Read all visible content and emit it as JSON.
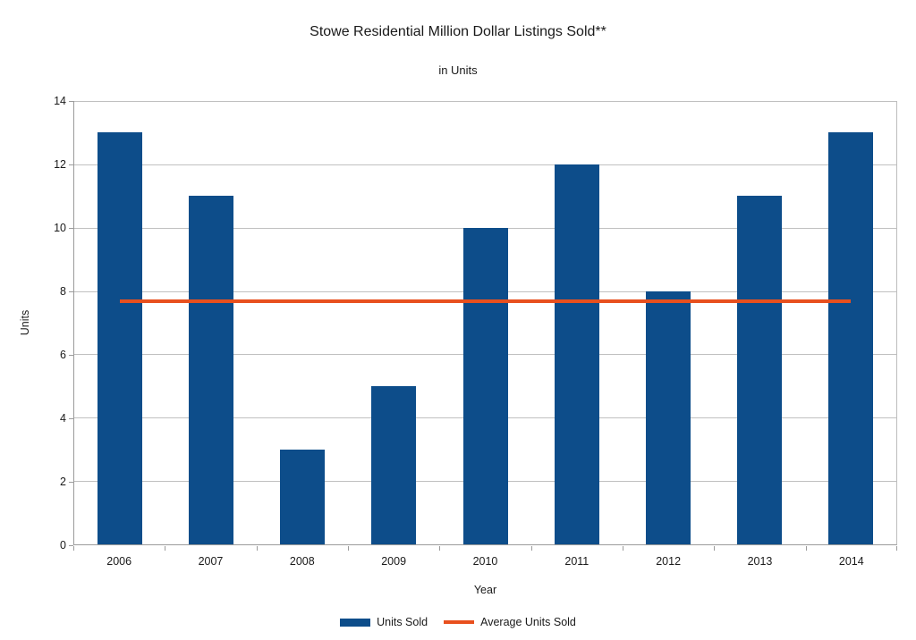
{
  "chart_data": {
    "type": "bar",
    "title": "Stowe Residential Million Dollar Listings Sold**",
    "subtitle": "in Units",
    "xlabel": "Year",
    "ylabel": "Units",
    "categories": [
      "2006",
      "2007",
      "2008",
      "2009",
      "2010",
      "2011",
      "2012",
      "2013",
      "2014"
    ],
    "series": [
      {
        "name": "Units Sold",
        "type": "bar",
        "color": "#0d4d8a",
        "values": [
          13,
          11,
          3,
          5,
          10,
          12,
          8,
          11,
          13
        ]
      },
      {
        "name": "Average Units Sold",
        "type": "line",
        "color": "#e8501e",
        "value": 7.67
      }
    ],
    "ylim": [
      0,
      14
    ],
    "ytick_step": 2,
    "grid": true,
    "legend_position": "bottom",
    "colors": {
      "background": "#ffffff",
      "gridline": "#c0c0c0",
      "axis": "#9b9b9b",
      "text": "#1a1a1a"
    }
  }
}
